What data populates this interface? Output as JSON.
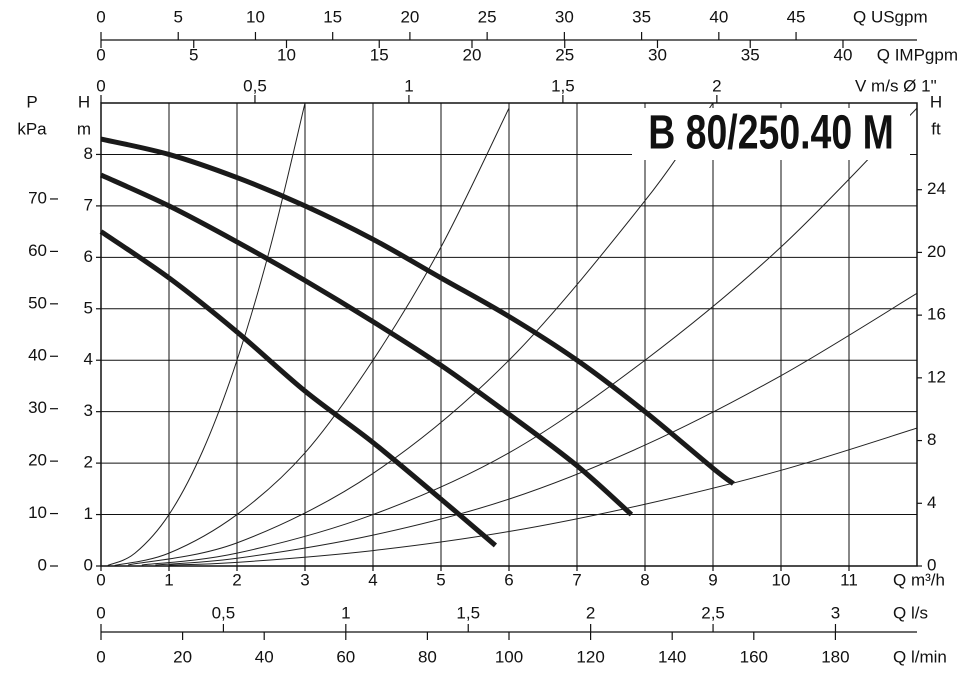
{
  "chart_data": {
    "type": "line",
    "title": "B 80/250.40 M",
    "x_label": "Q m³/h",
    "y_label": "H",
    "y_unit": "m",
    "xlim": [
      0,
      12
    ],
    "xticks": [
      0,
      1,
      2,
      3,
      4,
      5,
      6,
      7,
      8,
      9,
      10,
      11
    ],
    "ylim": [
      0,
      9
    ],
    "yticks": [
      0,
      1,
      2,
      3,
      4,
      5,
      6,
      7,
      8
    ],
    "grid": true,
    "p_axis": {
      "label": "P",
      "unit": "kPa",
      "lim": [
        0,
        88.3
      ],
      "ticks": [
        0,
        10,
        20,
        30,
        40,
        50,
        60,
        70
      ]
    },
    "ft_axis": {
      "label": "H",
      "unit": "ft",
      "lim": [
        0,
        29.53
      ],
      "ticks": [
        0,
        4,
        8,
        12,
        16,
        20,
        24
      ]
    },
    "top_axes": [
      {
        "label": "Q USgpm",
        "lim": [
          0,
          52.83
        ],
        "ticks": [
          0,
          5,
          10,
          15,
          20,
          25,
          30,
          35,
          40,
          45
        ]
      },
      {
        "label": "Q IMPgpm",
        "lim": [
          0,
          43.99
        ],
        "ticks": [
          0,
          5,
          10,
          15,
          20,
          25,
          30,
          35,
          40
        ]
      },
      {
        "label": "V m/s Ø 1\"",
        "lim": [
          0,
          2.65
        ],
        "ticks": [
          0,
          {
            "value": 0.5,
            "label": "0,5"
          },
          1,
          {
            "value": 1.5,
            "label": "1,5"
          },
          2
        ]
      }
    ],
    "bottom_axes": [
      {
        "label": "Q l/s",
        "lim": [
          0,
          3.333
        ],
        "ticks": [
          0,
          {
            "value": 0.5,
            "label": "0,5"
          },
          1,
          {
            "value": 1.5,
            "label": "1,5"
          },
          2,
          {
            "value": 2.5,
            "label": "2,5"
          },
          3
        ]
      },
      {
        "label": "Q l/min",
        "lim": [
          0,
          200
        ],
        "ticks": [
          0,
          20,
          40,
          60,
          80,
          100,
          120,
          140,
          160,
          180
        ]
      }
    ],
    "series": [
      {
        "color": "#1a1a1a",
        "x": [
          0,
          1,
          2,
          3,
          4,
          5,
          6,
          7,
          8,
          9,
          9.3
        ],
        "values": [
          8.3,
          8.0,
          7.55,
          7.0,
          6.35,
          5.6,
          4.85,
          4.0,
          3.0,
          1.9,
          1.6
        ]
      },
      {
        "color": "#1a1a1a",
        "x": [
          0,
          1,
          2,
          3,
          4,
          5,
          6,
          7,
          7.8
        ],
        "values": [
          7.6,
          7.0,
          6.3,
          5.55,
          4.75,
          3.9,
          2.95,
          1.95,
          1.0
        ]
      },
      {
        "color": "#1a1a1a",
        "x": [
          0,
          1,
          2,
          3,
          4,
          5,
          5.8
        ],
        "values": [
          6.5,
          5.6,
          4.55,
          3.4,
          2.4,
          1.3,
          0.4
        ]
      }
    ],
    "system_curves": [
      {
        "color": "#222222",
        "x": [
          0.1,
          0.5,
          1,
          1.5,
          2,
          2.5,
          3
        ],
        "values": [
          0.01,
          0.25,
          1,
          2.25,
          4,
          6.25,
          9
        ]
      },
      {
        "color": "#222222",
        "x": [
          0.2,
          1,
          2,
          3,
          4,
          5,
          6
        ],
        "values": [
          0.01,
          0.25,
          1,
          2.2,
          4,
          6.2,
          8.9
        ]
      },
      {
        "color": "#222222",
        "x": [
          0.4,
          2,
          4,
          6,
          8,
          9
        ],
        "values": [
          0.02,
          0.45,
          1.8,
          4,
          7.1,
          9
        ]
      },
      {
        "color": "#222222",
        "x": [
          0.6,
          2,
          4,
          6,
          8,
          10,
          12
        ],
        "values": [
          0.02,
          0.25,
          1,
          2.2,
          4,
          6.2,
          8.9
        ]
      },
      {
        "color": "#222222",
        "x": [
          0.8,
          2,
          4,
          6,
          8,
          10,
          12
        ],
        "values": [
          0.02,
          0.15,
          0.6,
          1.3,
          2.35,
          3.7,
          5.3
        ]
      },
      {
        "color": "#222222",
        "x": [
          1,
          2,
          4,
          6,
          8,
          10,
          12
        ],
        "values": [
          0.02,
          0.07,
          0.3,
          0.67,
          1.2,
          1.86,
          2.68
        ]
      }
    ]
  }
}
